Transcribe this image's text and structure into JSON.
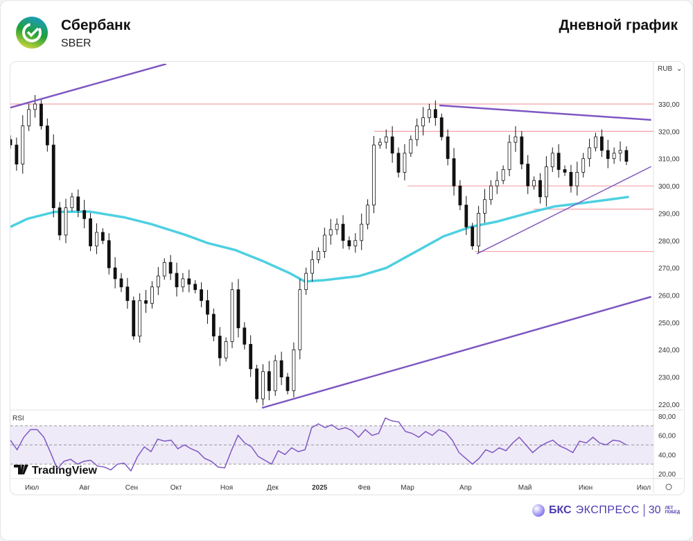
{
  "header": {
    "company": "Сбербанк",
    "ticker": "SBER",
    "title": "Дневной график"
  },
  "footer": {
    "brand_bold": "БКС",
    "brand": "ЭКСПРЕСС",
    "anniversary_number": "30",
    "anniversary_text_1": "ЛЕТ",
    "anniversary_text_2": "ПОБЕД"
  },
  "watermark": "TradingView",
  "colors": {
    "candle": "#111111",
    "ma": "#4dd0e1",
    "trend": "#7e57c2",
    "level": "#f4a0a8",
    "rsi": "#7e57c2",
    "rsi_band": "#efeaf8"
  },
  "chart_data": {
    "type": "candlestick",
    "currency": "RUB",
    "price_axis": {
      "ylim": [
        218,
        340
      ],
      "ticks": [
        "330,00",
        "320,00",
        "310,00",
        "300,00",
        "290,00",
        "280,00",
        "270,00",
        "260,00",
        "250,00",
        "240,00",
        "230,00",
        "220,00"
      ],
      "tick_values": [
        330,
        320,
        310,
        300,
        290,
        280,
        270,
        260,
        250,
        240,
        230,
        220
      ]
    },
    "time_axis": {
      "labels": [
        "Июл",
        "Авг",
        "Сен",
        "Окт",
        "Ноя",
        "Дек",
        "2025",
        "Фев",
        "Мар",
        "Апр",
        "Май",
        "Июн",
        "Июл"
      ],
      "label_days": [
        8.7,
        30,
        49,
        67,
        87.4,
        106,
        125,
        143,
        160.5,
        184,
        208,
        232.5,
        256
      ],
      "xlim_days": [
        0,
        260
      ]
    },
    "closes_span_days": [
      0,
      249
    ],
    "closes": [
      315,
      308,
      322,
      328,
      330,
      322,
      315,
      292,
      282,
      292,
      296,
      291,
      288,
      278,
      283,
      280,
      270,
      266,
      263,
      258,
      245,
      258,
      257,
      263,
      267,
      272,
      268,
      263,
      266,
      264,
      262,
      258,
      253,
      245,
      237,
      243,
      262,
      248,
      242,
      233,
      222,
      232,
      225,
      236,
      230,
      225,
      240,
      262,
      268,
      273,
      276,
      282,
      284,
      286,
      280,
      278,
      280,
      286,
      293,
      315,
      316,
      318,
      312,
      305,
      312,
      317,
      322,
      325,
      328,
      325,
      318,
      310,
      300,
      293,
      285,
      278,
      290,
      295,
      300,
      302,
      306,
      316,
      318,
      308,
      300,
      302,
      296,
      307,
      312,
      306,
      305,
      300,
      305,
      310,
      314,
      318,
      313,
      310,
      312,
      313,
      309
    ],
    "moving_average": {
      "days": [
        0,
        7,
        18,
        32,
        46,
        57,
        71,
        80,
        91,
        102,
        113,
        119,
        127,
        141,
        152,
        164,
        175,
        186,
        197,
        209,
        220,
        231,
        242,
        250
      ],
      "values": [
        285,
        288,
        290.5,
        290.6,
        288.5,
        286,
        282,
        279,
        276.5,
        272.5,
        268,
        265,
        265.5,
        267,
        270,
        276,
        281.5,
        285,
        287,
        290,
        292.5,
        293.7,
        295,
        296
      ]
    },
    "trendlines": [
      {
        "name": "upper-channel",
        "from": [
          0,
          328.7
        ],
        "to": [
          63,
          344.7
        ]
      },
      {
        "name": "lower-channel",
        "from": [
          101.7,
          218.7
        ],
        "to": [
          259,
          259.4
        ]
      },
      {
        "name": "descending-resistance",
        "from": [
          173.4,
          329.5
        ],
        "to": [
          259,
          324.2
        ]
      },
      {
        "name": "ascending-support",
        "from": [
          188.5,
          275.1
        ],
        "to": [
          259,
          307.1
        ]
      }
    ],
    "levels": [
      {
        "price": 330,
        "from_day": 0
      },
      {
        "price": 320,
        "from_day": 147
      },
      {
        "price": 300,
        "from_day": 160.5
      },
      {
        "price": 291.5,
        "from_day": 211.5
      },
      {
        "price": 276,
        "from_day": 187.7
      }
    ],
    "rsi": {
      "label": "RSI",
      "ylim": [
        15,
        85
      ],
      "ticks": [
        "80,00",
        "60,00",
        "40,00",
        "20,00"
      ],
      "tick_values": [
        80,
        60,
        40,
        20
      ],
      "bands": [
        70,
        50,
        30
      ],
      "values": [
        55,
        45,
        58,
        66,
        66,
        58,
        42,
        25,
        33,
        35,
        30,
        33,
        34,
        28,
        27,
        24,
        30,
        31,
        23,
        38,
        48,
        43,
        56,
        54,
        55,
        46,
        50,
        46,
        43,
        36,
        33,
        27,
        26,
        44,
        60,
        52,
        48,
        38,
        34,
        30,
        44,
        40,
        47,
        43,
        45,
        68,
        72,
        68,
        71,
        66,
        68,
        65,
        58,
        66,
        60,
        62,
        78,
        75,
        74,
        64,
        62,
        58,
        64,
        60,
        66,
        63,
        55,
        42,
        36,
        30,
        36,
        45,
        42,
        47,
        44,
        52,
        58,
        50,
        42,
        48,
        52,
        55,
        49,
        46,
        42,
        54,
        52,
        58,
        52,
        50,
        55,
        54,
        50
      ]
    }
  }
}
